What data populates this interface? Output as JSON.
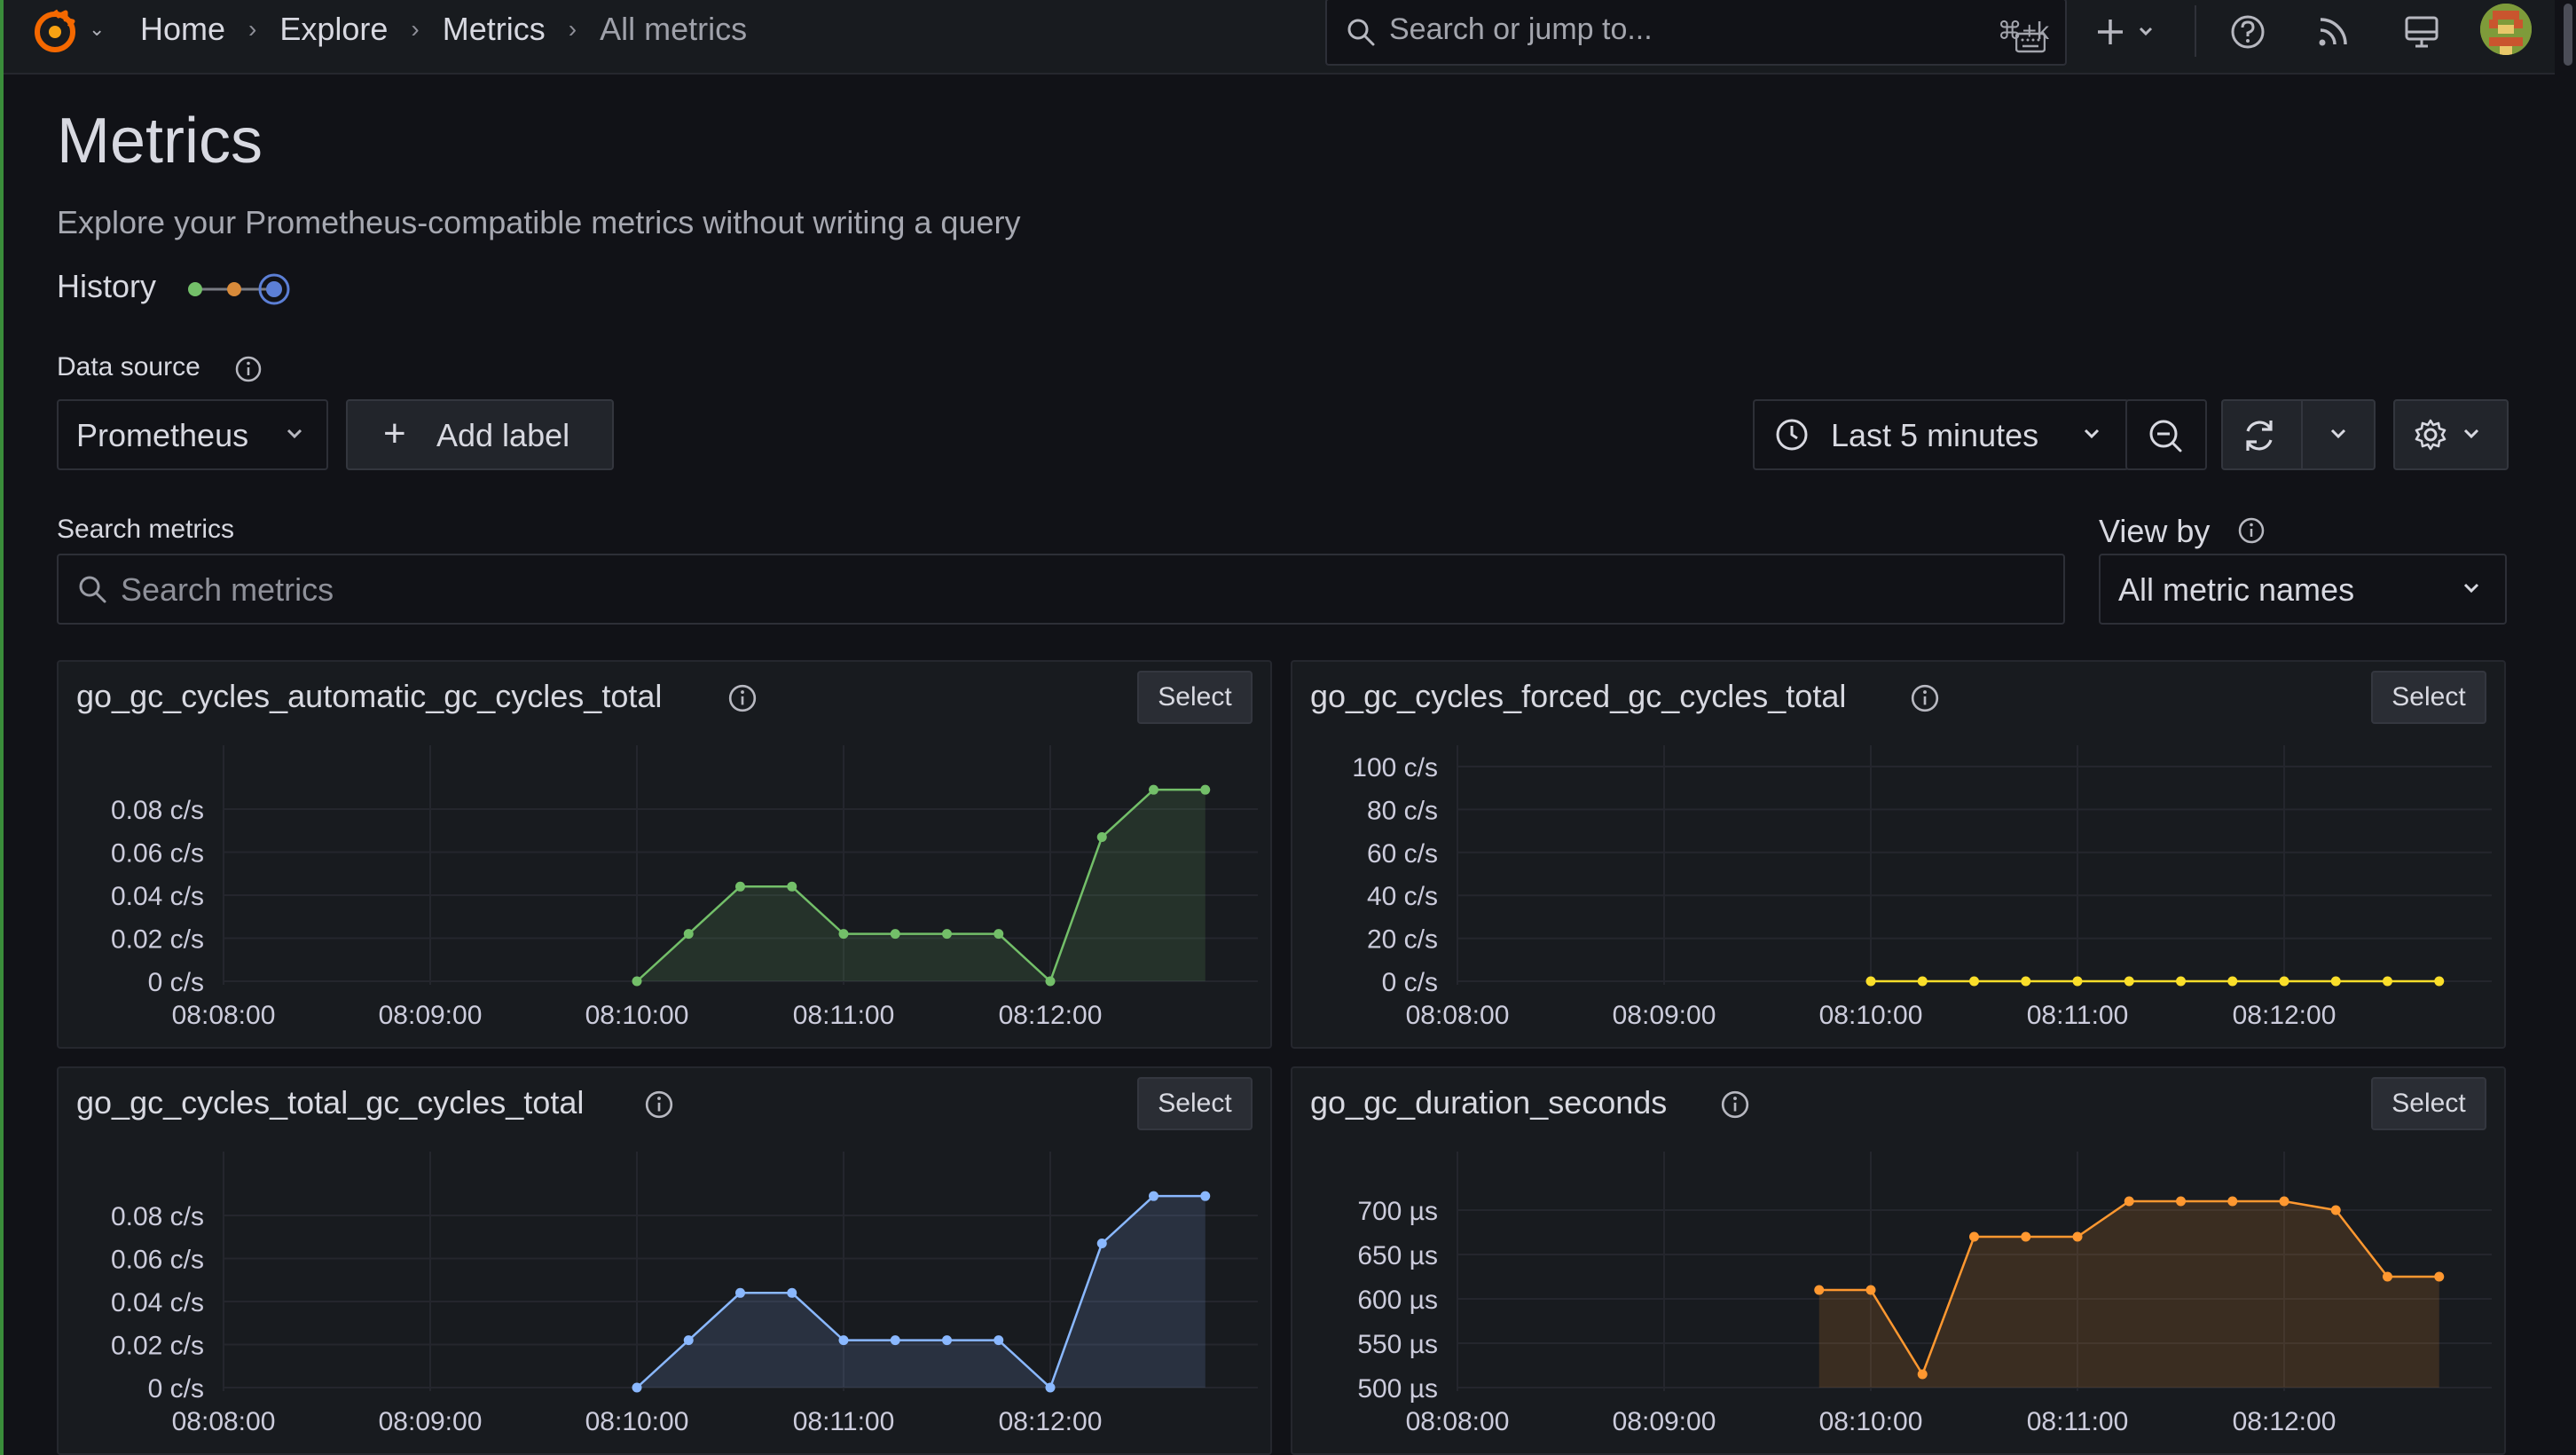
{
  "topbar": {
    "breadcrumbs": [
      "Home",
      "Explore",
      "Metrics",
      "All metrics"
    ],
    "search_placeholder": "Search or jump to...",
    "search_shortcut": "⌘+k",
    "icons": [
      "grafana-logo-icon",
      "plus-icon",
      "help-icon",
      "rss-icon",
      "kiosk-icon",
      "avatar"
    ]
  },
  "page": {
    "title": "Metrics",
    "subtitle": "Explore your Prometheus-compatible metrics without writing a query",
    "history_label": "History"
  },
  "controls": {
    "datasource_label": "Data source",
    "datasource_value": "Prometheus",
    "add_label": "Add label",
    "time_range": "Last 5 minutes",
    "search_metrics_label": "Search metrics",
    "search_metrics_placeholder": "Search metrics",
    "view_by_label": "View by",
    "view_by_value": "All metric names"
  },
  "panels": [
    {
      "title": "go_gc_cycles_automatic_gc_cycles_total",
      "select_label": "Select",
      "color": "#73bf69",
      "chart_data": {
        "type": "area",
        "x_ticks": [
          "08:08:00",
          "08:09:00",
          "08:10:00",
          "08:11:00",
          "08:12:00"
        ],
        "y_ticks": [
          "0 c/s",
          "0.02 c/s",
          "0.04 c/s",
          "0.06 c/s",
          "0.08 c/s"
        ],
        "ylim": [
          0,
          0.09
        ],
        "x_seconds_from_0808": [
          120,
          135,
          150,
          165,
          180,
          195,
          210,
          225,
          240,
          255,
          270,
          285
        ],
        "values": [
          0,
          0.022,
          0.044,
          0.044,
          0.022,
          0.022,
          0.022,
          0.022,
          0,
          0.067,
          0.089,
          0.089
        ]
      }
    },
    {
      "title": "go_gc_cycles_forced_gc_cycles_total",
      "select_label": "Select",
      "color": "#fade2a",
      "chart_data": {
        "type": "line",
        "x_ticks": [
          "08:08:00",
          "08:09:00",
          "08:10:00",
          "08:11:00",
          "08:12:00"
        ],
        "y_ticks": [
          "0 c/s",
          "20 c/s",
          "40 c/s",
          "60 c/s",
          "80 c/s",
          "100 c/s"
        ],
        "ylim": [
          0,
          100
        ],
        "x_seconds_from_0808": [
          120,
          135,
          150,
          165,
          180,
          195,
          210,
          225,
          240,
          255,
          270,
          285
        ],
        "values": [
          0,
          0,
          0,
          0,
          0,
          0,
          0,
          0,
          0,
          0,
          0,
          0
        ]
      }
    },
    {
      "title": "go_gc_cycles_total_gc_cycles_total",
      "select_label": "Select",
      "color": "#8ab8ff",
      "chart_data": {
        "type": "area",
        "x_ticks": [
          "08:08:00",
          "08:09:00",
          "08:10:00",
          "08:11:00",
          "08:12:00"
        ],
        "y_ticks": [
          "0 c/s",
          "0.02 c/s",
          "0.04 c/s",
          "0.06 c/s",
          "0.08 c/s"
        ],
        "ylim": [
          0,
          0.09
        ],
        "x_seconds_from_0808": [
          120,
          135,
          150,
          165,
          180,
          195,
          210,
          225,
          240,
          255,
          270,
          285
        ],
        "values": [
          0,
          0.022,
          0.044,
          0.044,
          0.022,
          0.022,
          0.022,
          0.022,
          0,
          0.067,
          0.089,
          0.089
        ]
      }
    },
    {
      "title": "go_gc_duration_seconds",
      "select_label": "Select",
      "color": "#ff9830",
      "chart_data": {
        "type": "area",
        "x_ticks": [
          "08:08:00",
          "08:09:00",
          "08:10:00",
          "08:11:00",
          "08:12:00"
        ],
        "y_ticks": [
          "500 µs",
          "550 µs",
          "600 µs",
          "650 µs",
          "700 µs"
        ],
        "ylim": [
          490,
          720
        ],
        "x_seconds_from_0808": [
          105,
          120,
          135,
          150,
          165,
          180,
          195,
          210,
          225,
          240,
          255,
          270,
          285
        ],
        "values": [
          610,
          610,
          515,
          670,
          670,
          670,
          710,
          710,
          710,
          710,
          700,
          625,
          625
        ]
      }
    }
  ]
}
